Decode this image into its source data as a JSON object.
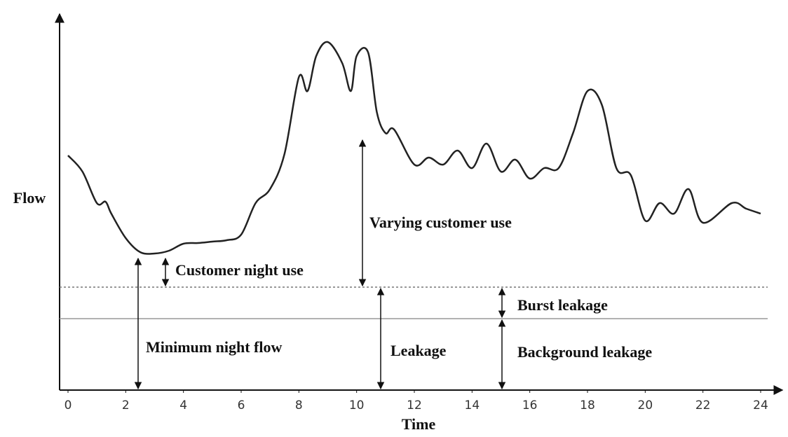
{
  "chart_data": {
    "type": "line",
    "x_label": "Time",
    "y_label": "Flow",
    "x": [
      0,
      0.5,
      1,
      1.3,
      1.5,
      2,
      2.5,
      3,
      3.5,
      4,
      4.5,
      5,
      5.5,
      6,
      6.5,
      7,
      7.5,
      8,
      8.3,
      8.6,
      9,
      9.5,
      9.8,
      10,
      10.4,
      10.7,
      11,
      11.3,
      12,
      12.5,
      13,
      13.5,
      14,
      14.5,
      15,
      15.5,
      16,
      16.5,
      17,
      17.5,
      18,
      18.5,
      19,
      19.5,
      20,
      20.5,
      21,
      21.5,
      22,
      23,
      23.5,
      24
    ],
    "values": [
      67,
      62.4,
      53.4,
      53.8,
      50.4,
      43.4,
      39.4,
      39,
      39.8,
      41.8,
      42,
      42.4,
      42.8,
      44.4,
      53.4,
      57.4,
      67.4,
      89.4,
      85.4,
      95.4,
      99.4,
      93.4,
      85.4,
      95.4,
      96.4,
      79.4,
      73.4,
      74.4,
      64.4,
      66.4,
      64.4,
      68.4,
      63.4,
      70.4,
      62.4,
      65.8,
      60.4,
      63.4,
      63.4,
      73.4,
      85.4,
      81.4,
      63.4,
      61.4,
      48.4,
      53.4,
      50.4,
      57.4,
      47.8,
      53.4,
      51.8,
      50.4
    ],
    "color": "#222222",
    "xlim": [
      0,
      24
    ],
    "xticks": [
      0,
      2,
      4,
      6,
      8,
      10,
      12,
      14,
      16,
      18,
      20,
      22,
      24
    ],
    "ylim": [
      0,
      100
    ],
    "reference_lines": [
      {
        "value": 29.4,
        "style": "dashed",
        "color": "#777777"
      },
      {
        "value": 20.4,
        "style": "solid",
        "color": "#999999"
      }
    ],
    "annotations": [
      "Varying customer use",
      "Customer night use",
      "Burst leakage",
      "Minimum night flow",
      "Leakage",
      "Background leakage"
    ]
  }
}
